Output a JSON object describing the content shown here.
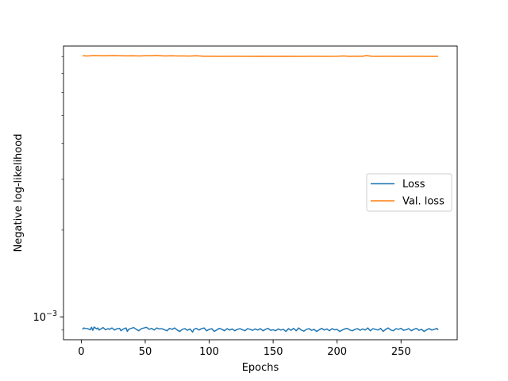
{
  "chart_data": {
    "type": "line",
    "title": "",
    "xlabel": "Epochs",
    "ylabel": "Negative log-likelihood",
    "yscale": "log",
    "xlim": [
      -13.9,
      293.9
    ],
    "ylim": [
      0.000833,
      0.0087
    ],
    "x_ticks": [
      0,
      50,
      100,
      150,
      200,
      250
    ],
    "x_tick_labels": [
      "0",
      "50",
      "100",
      "150",
      "200",
      "250"
    ],
    "y_ticks": [
      0.001
    ],
    "y_tick_labels": [
      "10^-3"
    ],
    "grid": false,
    "legend": {
      "placement": "center-right"
    },
    "series": [
      {
        "name": "Loss",
        "color": "#1f77b4",
        "x": [
          1,
          2,
          3,
          5,
          7,
          8,
          9,
          10,
          12,
          13,
          14,
          16,
          17,
          19,
          21,
          22,
          24,
          26,
          28,
          30,
          31,
          33,
          35,
          36,
          37,
          39,
          41,
          43,
          45,
          47,
          49,
          51,
          53,
          55,
          57,
          59,
          61,
          63,
          65,
          67,
          69,
          71,
          73,
          75,
          77,
          79,
          81,
          83,
          85,
          87,
          88,
          90,
          92,
          94,
          96,
          98,
          100,
          102,
          104,
          106,
          108,
          110,
          112,
          114,
          116,
          118,
          120,
          122,
          124,
          126,
          128,
          130,
          132,
          134,
          136,
          138,
          140,
          142,
          144,
          146,
          148,
          150,
          152,
          154,
          156,
          158,
          160,
          162,
          164,
          166,
          168,
          170,
          172,
          174,
          176,
          178,
          180,
          182,
          184,
          186,
          188,
          190,
          192,
          194,
          196,
          198,
          200,
          202,
          204,
          206,
          208,
          210,
          212,
          214,
          216,
          218,
          220,
          222,
          224,
          226,
          228,
          230,
          232,
          234,
          236,
          238,
          240,
          242,
          244,
          246,
          248,
          250,
          252,
          254,
          256,
          258,
          260,
          262,
          264,
          266,
          268,
          270,
          272,
          274,
          276,
          278,
          279
        ],
        "y": [
          0.000905,
          0.000915,
          0.000912,
          0.00091,
          0.000902,
          0.00092,
          0.000898,
          0.000922,
          0.000908,
          0.000915,
          0.0009,
          0.000912,
          0.000918,
          0.000902,
          0.00091,
          0.000905,
          0.000915,
          0.0009,
          0.00091,
          0.000912,
          0.000895,
          0.000908,
          0.000915,
          0.00089,
          0.000905,
          0.000912,
          0.000918,
          0.000905,
          0.000895,
          0.00091,
          0.000915,
          0.00092,
          0.000905,
          0.000912,
          0.0009,
          0.000915,
          0.000908,
          0.00091,
          0.000902,
          0.000895,
          0.000912,
          0.000905,
          0.000915,
          0.0009,
          0.00089,
          0.000905,
          0.00091,
          0.000898,
          0.000908,
          0.000885,
          0.000905,
          0.000912,
          0.0009,
          0.00091,
          0.000915,
          0.000895,
          0.000905,
          0.00091,
          0.00089,
          0.000902,
          0.000912,
          0.000905,
          0.000895,
          0.00091,
          0.0009,
          0.000908,
          0.000895,
          0.000905,
          0.00091,
          0.000902,
          0.000895,
          0.00091,
          0.000905,
          0.000898,
          0.000908,
          0.0009,
          0.00091,
          0.000895,
          0.000905,
          0.000912,
          0.000898,
          0.000902,
          0.000895,
          0.000908,
          0.0009,
          0.000905,
          0.00089,
          0.00091,
          0.000898,
          0.000912,
          0.000895,
          0.000915,
          0.0009,
          0.000892,
          0.000905,
          0.00091,
          0.000898,
          0.000905,
          0.00089,
          0.000902,
          0.000912,
          0.0009,
          0.000908,
          0.000895,
          0.00091,
          0.000902,
          0.000905,
          0.00089,
          0.0009,
          0.000908,
          0.000912,
          0.0009,
          0.000895,
          0.000905,
          0.00091,
          0.000898,
          0.000908,
          0.0009,
          0.000915,
          0.000895,
          0.00091,
          0.000905,
          0.0009,
          0.000912,
          0.00089,
          0.000905,
          0.000915,
          0.0009,
          0.000895,
          0.00091,
          0.000905,
          0.000912,
          0.000898,
          0.000902,
          0.00091,
          0.000895,
          0.000905,
          0.000912,
          0.000898,
          0.000905,
          0.00089,
          0.000902,
          0.00091,
          0.0009,
          0.000905,
          0.000912,
          0.0009
        ]
      },
      {
        "name": "Val. loss",
        "color": "#ff7f0e",
        "x": [
          1,
          5,
          10,
          15,
          20,
          25,
          30,
          35,
          40,
          45,
          50,
          55,
          58,
          62,
          66,
          70,
          75,
          80,
          85,
          90,
          95,
          100,
          110,
          120,
          130,
          140,
          150,
          160,
          170,
          180,
          190,
          200,
          205,
          210,
          215,
          220,
          223,
          227,
          230,
          240,
          250,
          260,
          270,
          279
        ],
        "y": [
          0.00805,
          0.008035,
          0.00806,
          0.00805,
          0.00805,
          0.00806,
          0.00805,
          0.008045,
          0.00805,
          0.00804,
          0.00805,
          0.00805,
          0.00807,
          0.00805,
          0.008035,
          0.00805,
          0.008035,
          0.00804,
          0.00803,
          0.00805,
          0.00802,
          0.00802,
          0.00801,
          0.008015,
          0.00801,
          0.00802,
          0.00801,
          0.00802,
          0.00801,
          0.008015,
          0.00801,
          0.00802,
          0.008035,
          0.00801,
          0.00802,
          0.00802,
          0.00806,
          0.008015,
          0.00801,
          0.008015,
          0.00801,
          0.008015,
          0.00801,
          0.00801
        ]
      }
    ]
  }
}
